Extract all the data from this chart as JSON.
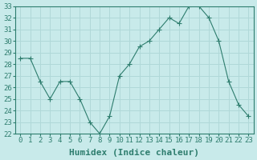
{
  "x": [
    0,
    1,
    2,
    3,
    4,
    5,
    6,
    7,
    8,
    9,
    10,
    11,
    12,
    13,
    14,
    15,
    16,
    17,
    18,
    19,
    20,
    21,
    22,
    23
  ],
  "y": [
    28.5,
    28.5,
    26.5,
    25.0,
    26.5,
    26.5,
    25.0,
    23.0,
    22.0,
    23.5,
    27.0,
    28.0,
    29.5,
    30.0,
    31.0,
    32.0,
    31.5,
    33.0,
    33.0,
    32.0,
    30.0,
    26.5,
    24.5,
    23.5
  ],
  "xlabel": "Humidex (Indice chaleur)",
  "ylim": [
    22,
    33
  ],
  "yticks": [
    22,
    23,
    24,
    25,
    26,
    27,
    28,
    29,
    30,
    31,
    32,
    33
  ],
  "xticks": [
    0,
    1,
    2,
    3,
    4,
    5,
    6,
    7,
    8,
    9,
    10,
    11,
    12,
    13,
    14,
    15,
    16,
    17,
    18,
    19,
    20,
    21,
    22,
    23
  ],
  "line_color": "#2e7d6e",
  "marker": "+",
  "bg_color": "#c8eaea",
  "grid_color": "#b0d8d8",
  "tick_fontsize": 6.5,
  "xlabel_fontsize": 8
}
